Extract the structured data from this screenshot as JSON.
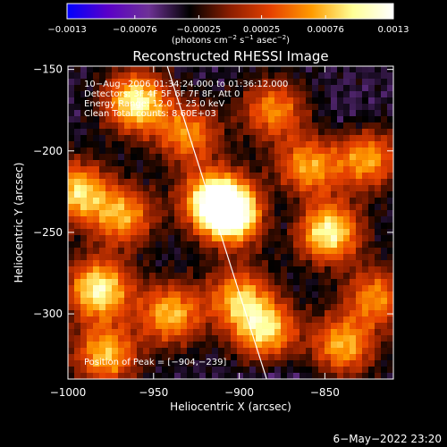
{
  "chart_data": {
    "type": "heatmap",
    "title": "Reconstructed RHESSI Image",
    "xlabel": "Heliocentric X (arcsec)",
    "ylabel": "Heliocentric Y (arcsec)",
    "xlim": [
      -1000,
      -810
    ],
    "ylim": [
      -340,
      -148
    ],
    "x_ticks": [
      -1000,
      -950,
      -900,
      -850
    ],
    "x_tick_labels": [
      "−1000",
      "−950",
      "−900",
      "−850"
    ],
    "y_ticks": [
      -150,
      -200,
      -250,
      -300
    ],
    "y_tick_labels": [
      "−150",
      "−200",
      "−250",
      "−300"
    ],
    "colorbar": {
      "range": [
        -0.0013,
        0.0013
      ],
      "ticks": [
        -0.0013,
        -0.00076,
        -0.00025,
        0.00025,
        0.00076,
        0.0013
      ],
      "tick_labels": [
        "−0.0013",
        "−0.00076",
        "−0.00025",
        "0.00025",
        "0.00076",
        "0.0013"
      ],
      "unit_parts": [
        "(photons cm",
        "−2",
        " s",
        "−1",
        " asec",
        "−2",
        ")"
      ],
      "colors": [
        "#0000ff",
        "#5a00c8",
        "#6e3296",
        "#000000",
        "#8c1e00",
        "#e64100",
        "#ff9b00",
        "#ffff96",
        "#ffffff"
      ]
    },
    "limb_line": {
      "from": [
        -942,
        -148
      ],
      "to": [
        -884,
        -340
      ]
    },
    "annotations": [
      "10−Aug−2006 01:34:24.000 to 01:36:12.000",
      "Detectors: 3F 4F 5F 6F 7F 8F, Att 0",
      "Energy Range: 12.0 − 25.0 keV",
      "Clean    Total counts: 8.60E+03"
    ],
    "peak_label": "Position of Peak = [−904,−239]",
    "peak_position": [
      -904,
      -239
    ],
    "hotspots": [
      {
        "x": -995,
        "y": -225,
        "v": 0.0009
      },
      {
        "x": -982,
        "y": -285,
        "v": 0.0011
      },
      {
        "x": -978,
        "y": -325,
        "v": 0.0008
      },
      {
        "x": -960,
        "y": -170,
        "v": 0.0011
      },
      {
        "x": -968,
        "y": -240,
        "v": 0.0007
      },
      {
        "x": -940,
        "y": -300,
        "v": 0.0008
      },
      {
        "x": -930,
        "y": -190,
        "v": 0.0006
      },
      {
        "x": -915,
        "y": -230,
        "v": 0.001
      },
      {
        "x": -904,
        "y": -239,
        "v": 0.0013
      },
      {
        "x": -900,
        "y": -290,
        "v": 0.0007
      },
      {
        "x": -880,
        "y": -175,
        "v": 0.0006
      },
      {
        "x": -885,
        "y": -310,
        "v": 0.0009
      },
      {
        "x": -860,
        "y": -210,
        "v": 0.0007
      },
      {
        "x": -848,
        "y": -250,
        "v": 0.0011
      },
      {
        "x": -840,
        "y": -320,
        "v": 0.0008
      },
      {
        "x": -825,
        "y": -205,
        "v": 0.0007
      },
      {
        "x": -820,
        "y": -290,
        "v": 0.0006
      }
    ],
    "coldspots": [
      {
        "x": -875,
        "y": -235,
        "v": -0.0006
      },
      {
        "x": -880,
        "y": -355,
        "v": -0.0008
      },
      {
        "x": -835,
        "y": -180,
        "v": -0.0005
      },
      {
        "x": -850,
        "y": -330,
        "v": -0.0005
      }
    ]
  },
  "footer": {
    "timestamp": "6−May−2022 23:20"
  }
}
